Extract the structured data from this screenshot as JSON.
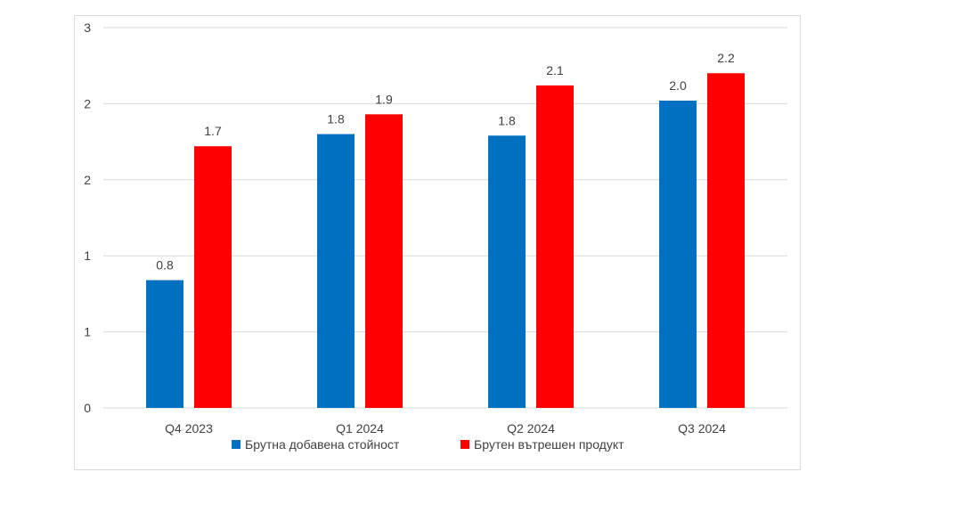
{
  "chart_data": {
    "type": "bar",
    "title": "",
    "xlabel": "",
    "ylabel": "",
    "categories": [
      "Q4 2023",
      "Q1 2024",
      "Q2 2024",
      "Q3 2024"
    ],
    "ylim": [
      0,
      2.5
    ],
    "y_ticks": [
      0,
      0.5,
      1.0,
      1.5,
      2.0,
      2.5
    ],
    "y_tick_labels": [
      "0",
      "1",
      "1",
      "2",
      "2",
      "3"
    ],
    "grid": true,
    "legend_position": "bottom",
    "series": [
      {
        "name": "Брутна добавена стойност",
        "color": "#0070c0",
        "values": [
          0.84,
          1.8,
          1.79,
          2.02
        ],
        "labels": [
          "0.8",
          "1.8",
          "1.8",
          "2.0"
        ]
      },
      {
        "name": "Брутен вътрешен продукт",
        "color": "#ff0000",
        "values": [
          1.72,
          1.93,
          2.12,
          2.2
        ],
        "labels": [
          "1.7",
          "1.9",
          "2.1",
          "2.2"
        ]
      }
    ]
  }
}
